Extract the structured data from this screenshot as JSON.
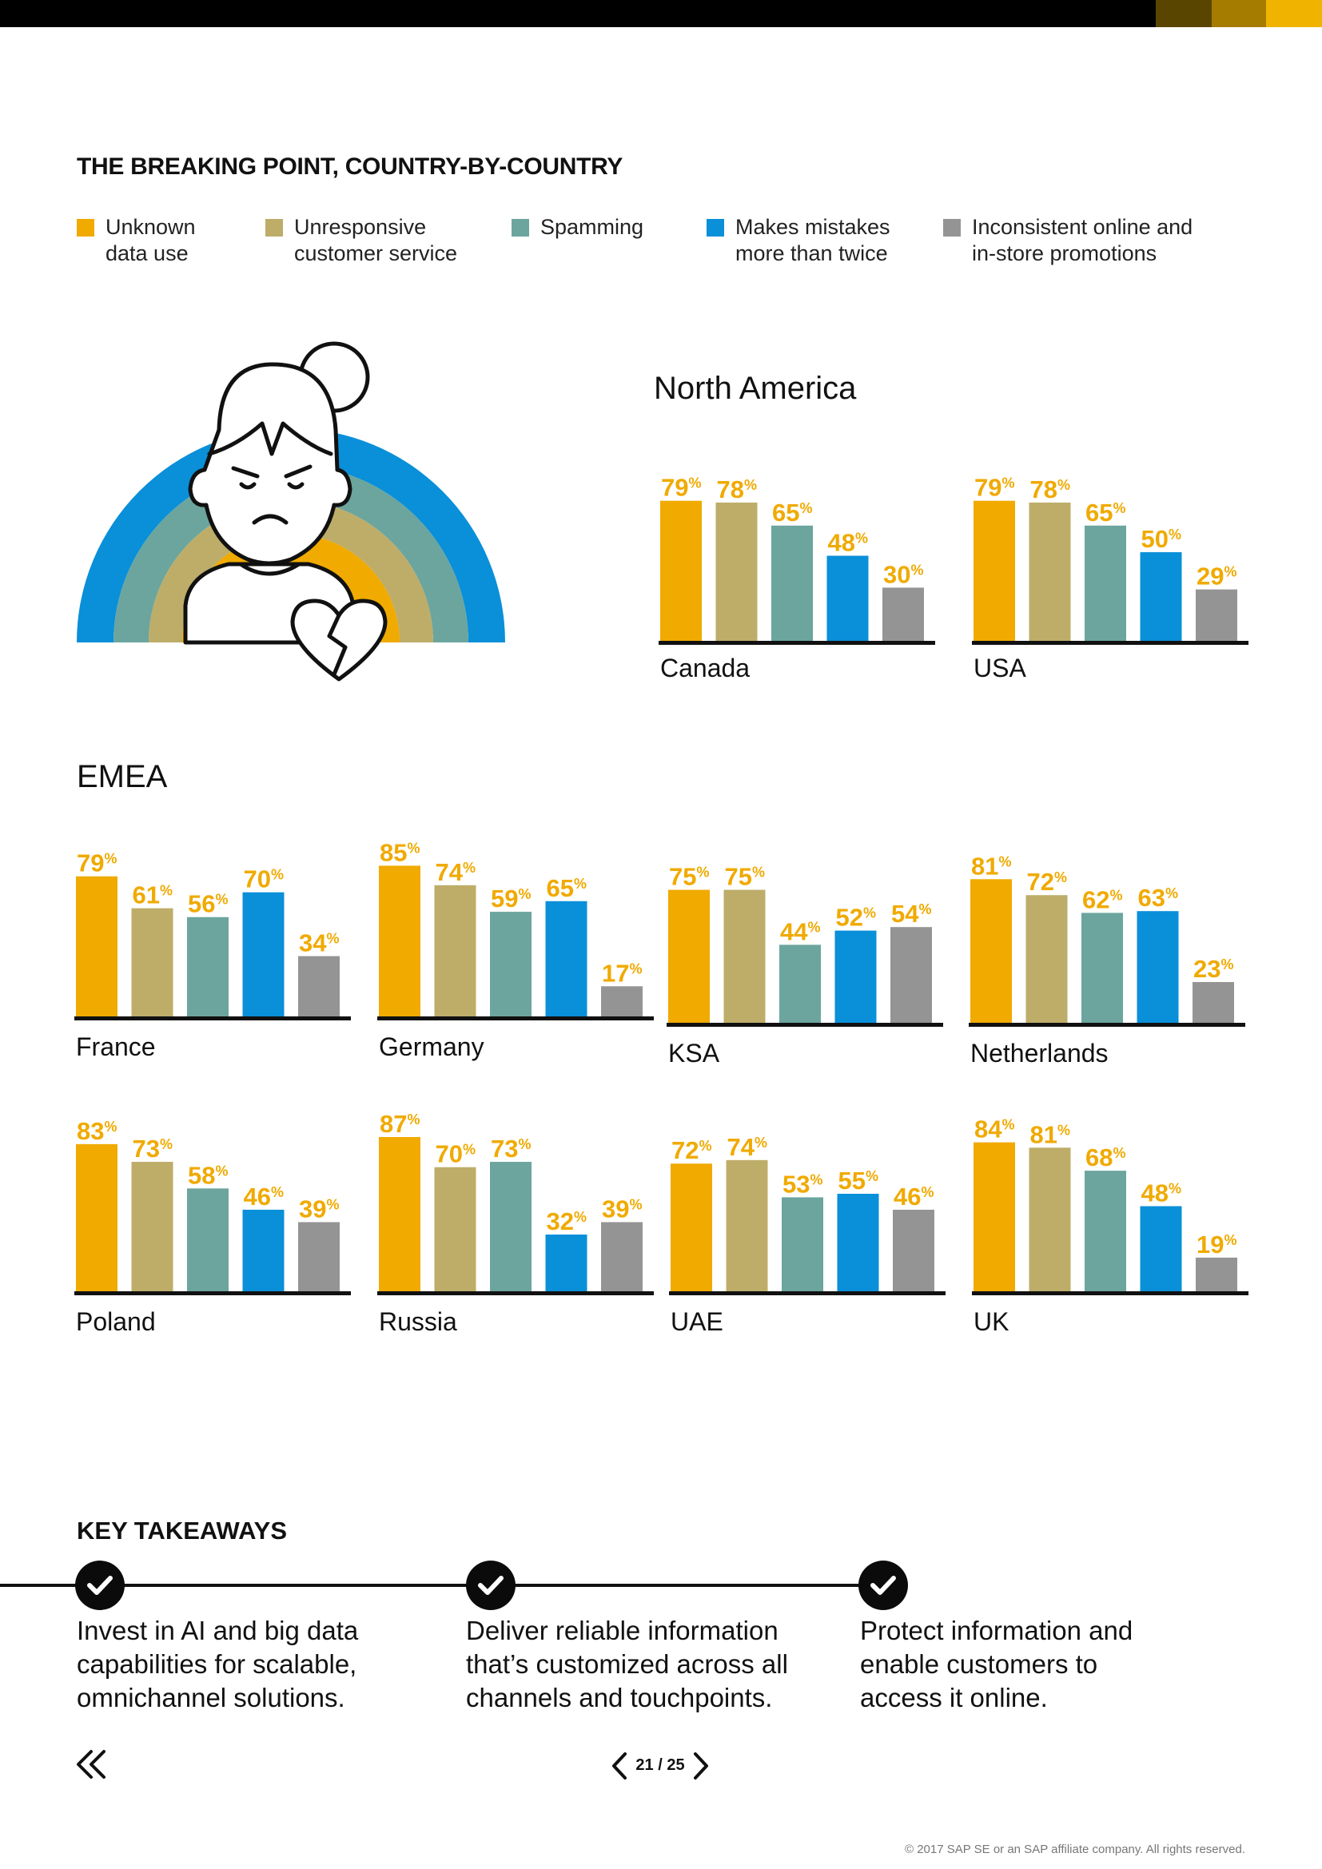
{
  "page": {
    "title": "THE BREAKING POINT, COUNTRY-BY-COUNTRY",
    "top_bar_colors": [
      "#000000",
      "#5a4500",
      "#a57c00",
      "#f0b400"
    ]
  },
  "legend": [
    {
      "label": "Unknown\ndata use",
      "color": "#f0aa00"
    },
    {
      "label": "Unresponsive\ncustomer service",
      "color": "#bdad69"
    },
    {
      "label": "Spamming",
      "color": "#6ba59e"
    },
    {
      "label": "Makes mistakes\nmore than twice",
      "color": "#0a8fd9"
    },
    {
      "label": "Inconsistent online and\nin-store promotions",
      "color": "#949494"
    }
  ],
  "regions": {
    "north_america": "North America",
    "emea": "EMEA"
  },
  "label_color": "#f0aa00",
  "chart_data": [
    {
      "type": "bar",
      "region": "North America",
      "country": "Canada",
      "categories": [
        "Unknown data use",
        "Unresponsive customer service",
        "Spamming",
        "Makes mistakes more than twice",
        "Inconsistent online and in-store promotions"
      ],
      "values": [
        79,
        78,
        65,
        48,
        30
      ],
      "ylim": [
        0,
        100
      ]
    },
    {
      "type": "bar",
      "region": "North America",
      "country": "USA",
      "categories": [
        "Unknown data use",
        "Unresponsive customer service",
        "Spamming",
        "Makes mistakes more than twice",
        "Inconsistent online and in-store promotions"
      ],
      "values": [
        79,
        78,
        65,
        50,
        29
      ],
      "ylim": [
        0,
        100
      ]
    },
    {
      "type": "bar",
      "region": "EMEA",
      "country": "France",
      "categories": [
        "Unknown data use",
        "Unresponsive customer service",
        "Spamming",
        "Makes mistakes more than twice",
        "Inconsistent online and in-store promotions"
      ],
      "values": [
        79,
        61,
        56,
        70,
        34
      ],
      "ylim": [
        0,
        100
      ]
    },
    {
      "type": "bar",
      "region": "EMEA",
      "country": "Germany",
      "categories": [
        "Unknown data use",
        "Unresponsive customer service",
        "Spamming",
        "Makes mistakes more than twice",
        "Inconsistent online and in-store promotions"
      ],
      "values": [
        85,
        74,
        59,
        65,
        17
      ],
      "ylim": [
        0,
        100
      ]
    },
    {
      "type": "bar",
      "region": "EMEA",
      "country": "KSA",
      "categories": [
        "Unknown data use",
        "Unresponsive customer service",
        "Spamming",
        "Makes mistakes more than twice",
        "Inconsistent online and in-store promotions"
      ],
      "values": [
        75,
        75,
        44,
        52,
        54
      ],
      "ylim": [
        0,
        100
      ]
    },
    {
      "type": "bar",
      "region": "EMEA",
      "country": "Netherlands",
      "categories": [
        "Unknown data use",
        "Unresponsive customer service",
        "Spamming",
        "Makes mistakes more than twice",
        "Inconsistent online and in-store promotions"
      ],
      "values": [
        81,
        72,
        62,
        63,
        23
      ],
      "ylim": [
        0,
        100
      ]
    },
    {
      "type": "bar",
      "region": "EMEA",
      "country": "Poland",
      "categories": [
        "Unknown data use",
        "Unresponsive customer service",
        "Spamming",
        "Makes mistakes more than twice",
        "Inconsistent online and in-store promotions"
      ],
      "values": [
        83,
        73,
        58,
        46,
        39
      ],
      "ylim": [
        0,
        100
      ]
    },
    {
      "type": "bar",
      "region": "EMEA",
      "country": "Russia",
      "categories": [
        "Unknown data use",
        "Unresponsive customer service",
        "Spamming",
        "Makes mistakes more than twice",
        "Inconsistent online and in-store promotions"
      ],
      "values": [
        87,
        70,
        73,
        32,
        39
      ],
      "ylim": [
        0,
        100
      ]
    },
    {
      "type": "bar",
      "region": "EMEA",
      "country": "UAE",
      "categories": [
        "Unknown data use",
        "Unresponsive customer service",
        "Spamming",
        "Makes mistakes more than twice",
        "Inconsistent online and in-store promotions"
      ],
      "values": [
        72,
        74,
        53,
        55,
        46
      ],
      "ylim": [
        0,
        100
      ]
    },
    {
      "type": "bar",
      "region": "EMEA",
      "country": "UK",
      "categories": [
        "Unknown data use",
        "Unresponsive customer service",
        "Spamming",
        "Makes mistakes more than twice",
        "Inconsistent online and in-store promotions"
      ],
      "values": [
        84,
        81,
        68,
        48,
        19
      ],
      "ylim": [
        0,
        100
      ]
    }
  ],
  "takeaways": {
    "title": "KEY TAKEAWAYS",
    "items": [
      {
        "text": "Invest in AI and big data capabilities for scalable, omnichannel solutions."
      },
      {
        "text": "Deliver reliable information that’s customized across all channels and touchpoints."
      },
      {
        "text": "Protect information and enable customers to access it online."
      }
    ]
  },
  "footer": {
    "page_number": "21 / 25",
    "copyright": "© 2017 SAP SE or an SAP affiliate company. All rights reserved.",
    "back_icon": "double-chevron-left-icon"
  }
}
